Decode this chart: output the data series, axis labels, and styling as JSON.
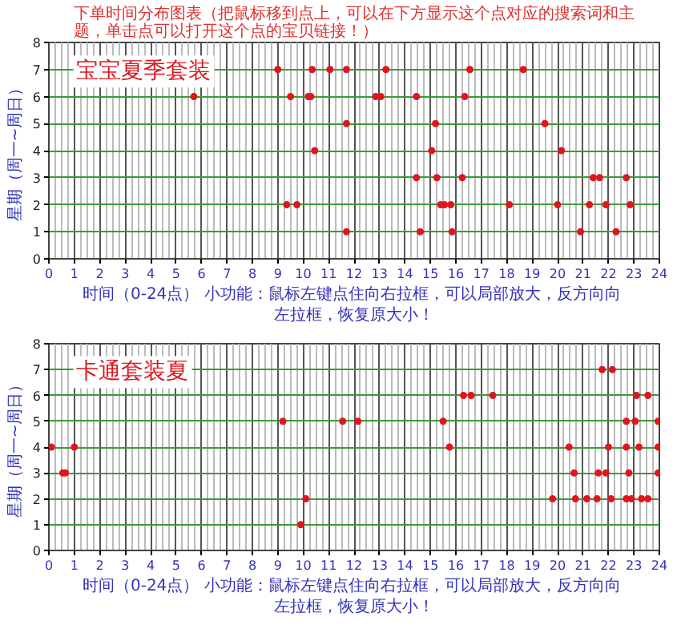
{
  "chart_data": [
    {
      "type": "scatter",
      "title": "下单时间分布图表（把鼠标移到点上，可以在下方显示这个点对应的搜索词和主题，单击点可以打开这个点的宝贝链接！）",
      "xlabel": "时间（0-24点）  小功能：鼠标左键点住向右拉框，可以局部放大，反方向向左拉框，恢复原大小！",
      "ylabel": "星期（周一~周日）",
      "xlim": [
        0,
        24
      ],
      "ylim": [
        0,
        8
      ],
      "xticks": [
        0,
        1,
        2,
        3,
        4,
        5,
        6,
        7,
        8,
        9,
        10,
        11,
        12,
        13,
        14,
        15,
        16,
        17,
        18,
        19,
        20,
        21,
        22,
        23,
        24
      ],
      "yticks": [
        0,
        1,
        2,
        3,
        4,
        5,
        6,
        7,
        8
      ],
      "grid": true,
      "marker": "circle",
      "series": [
        {
          "name": "宝宝夏季套装",
          "color": "#e0161e",
          "x": [
            9.0,
            10.35,
            11.05,
            11.7,
            13.25,
            16.55,
            18.65,
            5.7,
            9.5,
            10.2,
            10.3,
            12.85,
            13.05,
            14.45,
            16.35,
            11.7,
            15.2,
            19.5,
            10.45,
            15.05,
            20.15,
            14.45,
            15.25,
            16.25,
            21.4,
            21.65,
            22.7,
            9.35,
            9.75,
            15.4,
            15.55,
            15.8,
            18.1,
            20.0,
            21.25,
            21.9,
            22.85,
            11.7,
            14.6,
            15.85,
            20.9,
            22.3
          ],
          "values": [
            7,
            7,
            7,
            7,
            7,
            7,
            7,
            6,
            6,
            6,
            6,
            6,
            6,
            6,
            6,
            5,
            5,
            5,
            4,
            4,
            4,
            3,
            3,
            3,
            3,
            3,
            3,
            2,
            2,
            2,
            2,
            2,
            2,
            2,
            2,
            2,
            2,
            1,
            1,
            1,
            1,
            1
          ]
        }
      ]
    },
    {
      "type": "scatter",
      "xlabel": "时间（0-24点）  小功能：鼠标左键点住向右拉框，可以局部放大，反方向向左拉框，恢复原大小！",
      "ylabel": "星期（周一~周日）",
      "xlim": [
        0,
        24
      ],
      "ylim": [
        0,
        8
      ],
      "xticks": [
        0,
        1,
        2,
        3,
        4,
        5,
        6,
        7,
        8,
        9,
        10,
        11,
        12,
        13,
        14,
        15,
        16,
        17,
        18,
        19,
        20,
        21,
        22,
        23,
        24
      ],
      "yticks": [
        0,
        1,
        2,
        3,
        4,
        5,
        6,
        7,
        8
      ],
      "grid": true,
      "marker": "circle",
      "series": [
        {
          "name": "卡通套装夏",
          "color": "#e0161e",
          "x": [
            21.75,
            22.15,
            16.3,
            16.6,
            17.45,
            23.1,
            23.55,
            9.2,
            11.55,
            12.15,
            15.5,
            22.7,
            23.05,
            23.95,
            0.1,
            1.0,
            15.75,
            20.45,
            22.0,
            22.7,
            23.2,
            23.95,
            0.55,
            0.65,
            20.65,
            21.6,
            21.9,
            22.8,
            23.95,
            10.1,
            19.8,
            20.7,
            21.15,
            21.55,
            22.1,
            22.7,
            22.9,
            23.3,
            23.55,
            9.9
          ],
          "values": [
            7,
            7,
            6,
            6,
            6,
            6,
            6,
            5,
            5,
            5,
            5,
            5,
            5,
            5,
            4,
            4,
            4,
            4,
            4,
            4,
            4,
            4,
            3,
            3,
            3,
            3,
            3,
            3,
            3,
            2,
            2,
            2,
            2,
            2,
            2,
            2,
            2,
            2,
            2,
            1
          ]
        }
      ]
    }
  ]
}
